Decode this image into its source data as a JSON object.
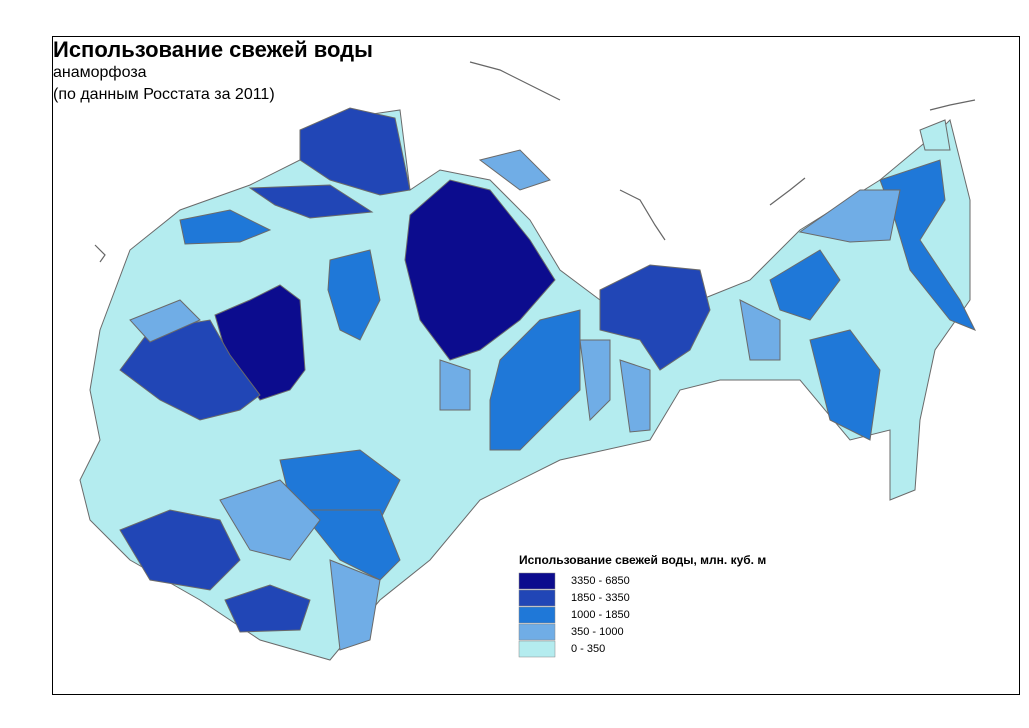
{
  "title": "Использование свежей воды",
  "subtitle": "анаморфоза",
  "source_note": "(по данным Росстата за 2011)",
  "legend": {
    "title": "Использование свежей воды, млн. куб. м",
    "classes": [
      {
        "label": "3350 - 6850",
        "color": "#0c0c8e"
      },
      {
        "label": "1850 - 3350",
        "color": "#2146b6"
      },
      {
        "label": "1000 - 1850",
        "color": "#1f78d8"
      },
      {
        "label": "350 - 1000",
        "color": "#70ade6"
      },
      {
        "label": "0 - 350",
        "color": "#b4ecef"
      }
    ]
  }
}
